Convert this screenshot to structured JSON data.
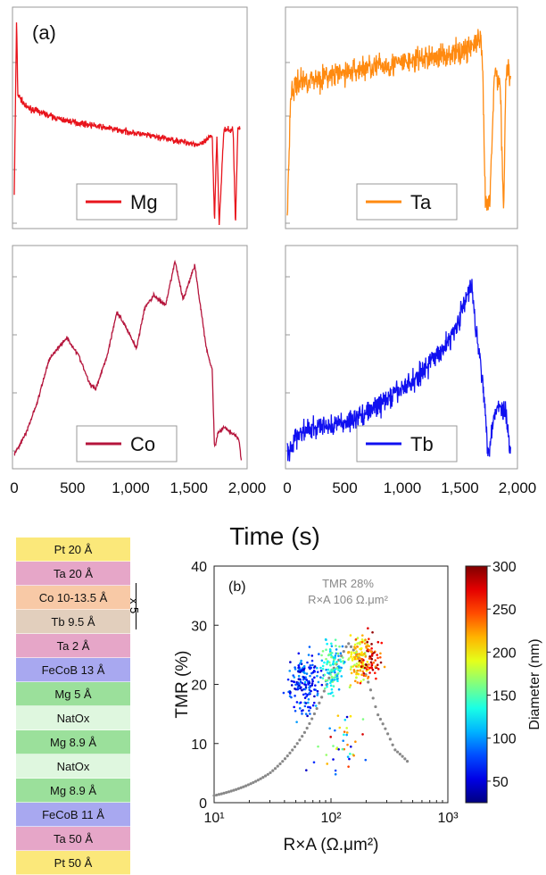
{
  "panel_a": {
    "label": "(a)",
    "xlabel": "Time (s)",
    "xticks": [
      "0",
      "500",
      "1,000",
      "1,500",
      "2,000"
    ]
  },
  "chart_data": [
    {
      "type": "line",
      "title": "",
      "series": [
        {
          "name": "Mg",
          "color": "#e8141c",
          "x": [
            0,
            20,
            30,
            100,
            200,
            400,
            600,
            800,
            1000,
            1200,
            1400,
            1600,
            1650,
            1700,
            1720,
            1740,
            1760,
            1800,
            1880,
            1900,
            1920,
            1940
          ],
          "y": [
            0.15,
            0.98,
            0.62,
            0.56,
            0.54,
            0.5,
            0.48,
            0.46,
            0.44,
            0.42,
            0.4,
            0.38,
            0.4,
            0.43,
            0.02,
            0.43,
            0.0,
            0.45,
            0.45,
            0.0,
            0.46,
            0.46
          ]
        }
      ],
      "xlim": [
        0,
        2000
      ]
    },
    {
      "type": "line",
      "title": "",
      "series": [
        {
          "name": "Ta",
          "color": "#ff8a10",
          "x": [
            0,
            30,
            100,
            300,
            500,
            700,
            900,
            1100,
            1300,
            1500,
            1600,
            1680,
            1700,
            1720,
            1760,
            1800,
            1850,
            1880,
            1900,
            1940
          ],
          "y": [
            0.05,
            0.62,
            0.68,
            0.7,
            0.72,
            0.75,
            0.76,
            0.78,
            0.8,
            0.82,
            0.85,
            0.88,
            0.7,
            0.1,
            0.1,
            0.72,
            0.68,
            0.05,
            0.74,
            0.72
          ]
        }
      ],
      "xlim": [
        0,
        2000
      ]
    },
    {
      "type": "line",
      "title": "",
      "series": [
        {
          "name": "Co",
          "color": "#b5153c",
          "x": [
            0,
            100,
            200,
            300,
            450,
            550,
            650,
            700,
            800,
            880,
            950,
            1050,
            1120,
            1200,
            1300,
            1380,
            1450,
            1550,
            1650,
            1700,
            1720,
            1750,
            1800,
            1900,
            1930,
            1950
          ],
          "y": [
            0.05,
            0.15,
            0.3,
            0.5,
            0.6,
            0.52,
            0.38,
            0.36,
            0.52,
            0.72,
            0.66,
            0.55,
            0.74,
            0.8,
            0.75,
            0.96,
            0.78,
            0.94,
            0.55,
            0.45,
            0.08,
            0.15,
            0.18,
            0.14,
            0.12,
            0.02
          ]
        }
      ],
      "xlim": [
        0,
        2000
      ]
    },
    {
      "type": "line",
      "title": "",
      "series": [
        {
          "name": "Tb",
          "color": "#1010f0",
          "x": [
            0,
            100,
            300,
            500,
            700,
            900,
            1100,
            1300,
            1400,
            1500,
            1600,
            1650,
            1700,
            1740,
            1760,
            1800,
            1850,
            1900,
            1940
          ],
          "y": [
            0.05,
            0.15,
            0.18,
            0.2,
            0.25,
            0.32,
            0.4,
            0.52,
            0.58,
            0.7,
            0.85,
            0.6,
            0.4,
            0.08,
            0.1,
            0.25,
            0.28,
            0.25,
            0.05
          ]
        }
      ],
      "xlim": [
        0,
        2000
      ]
    },
    {
      "type": "scatter",
      "title": "",
      "xlabel": "R×A (Ω.μm²)",
      "ylabel": "TMR (%)",
      "ylim": [
        0,
        40
      ],
      "xlim": [
        10,
        1000
      ],
      "xscale": "log",
      "yticks": [
        "0",
        "10",
        "20",
        "30",
        "40"
      ],
      "xticks": [
        "10¹",
        "10²",
        "10³"
      ],
      "panel_label": "(b)",
      "annotation": [
        "TMR 28%",
        "R×A 106 Ω.μm²"
      ],
      "fit_curve": {
        "x": [
          10,
          30,
          60,
          100,
          140,
          180,
          250,
          350,
          450
        ],
        "y": [
          1.2,
          5,
          12,
          22,
          27,
          24,
          15,
          9,
          7
        ]
      },
      "colorbar": {
        "label": "Diameter (nm)",
        "range": [
          25,
          300
        ],
        "ticks": [
          "50",
          "100",
          "150",
          "200",
          "250",
          "300"
        ]
      }
    }
  ],
  "stack": {
    "layers": [
      {
        "text": "Pt 20 Å",
        "color": "#fbe87a"
      },
      {
        "text": "Ta 20 Å",
        "color": "#e6a6c8"
      },
      {
        "text": "Co 10-13.5 Å",
        "color": "#f8c9a6"
      },
      {
        "text": "Tb 9.5 Å",
        "color": "#e2cfbd"
      },
      {
        "text": "Ta 2 Å",
        "color": "#e6a6c8"
      },
      {
        "text": "FeCoB 13 Å",
        "color": "#a8a8f0"
      },
      {
        "text": "Mg 5 Å",
        "color": "#9be09b"
      },
      {
        "text": "NatOx",
        "color": "#dff7df"
      },
      {
        "text": "Mg 8.9 Å",
        "color": "#9be09b"
      },
      {
        "text": "NatOx",
        "color": "#dff7df"
      },
      {
        "text": "Mg 8.9 Å",
        "color": "#9be09b"
      },
      {
        "text": "FeCoB 11 Å",
        "color": "#a8a8f0"
      },
      {
        "text": "Ta 50 Å",
        "color": "#e6a6c8"
      },
      {
        "text": "Pt 50 Å",
        "color": "#fbe87a"
      }
    ],
    "repeat": "x 5"
  }
}
